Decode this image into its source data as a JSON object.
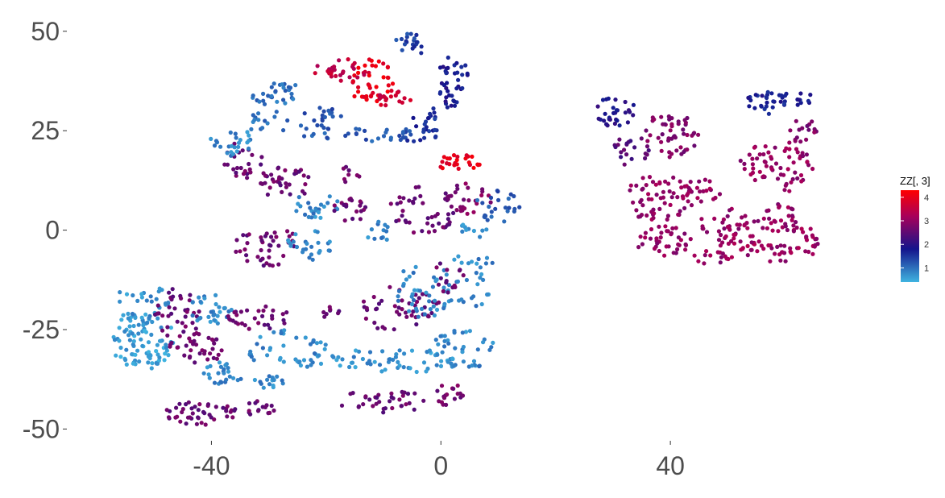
{
  "chart_data": {
    "type": "scatter",
    "title": "",
    "xlabel": "",
    "ylabel": "",
    "xlim": [
      -60,
      72
    ],
    "ylim": [
      -56,
      53
    ],
    "x_ticks": [
      {
        "value": -40,
        "label": "-40"
      },
      {
        "value": 0,
        "label": "0"
      },
      {
        "value": 40,
        "label": "40"
      }
    ],
    "y_ticks": [
      {
        "value": 50,
        "label": "50"
      },
      {
        "value": 25,
        "label": "25"
      },
      {
        "value": 0,
        "label": "0"
      },
      {
        "value": -25,
        "label": "-25"
      },
      {
        "value": -50,
        "label": "-50"
      }
    ],
    "grid": false,
    "legend": {
      "title": "ZZ[, 3]",
      "type": "colorbar",
      "placement": "right",
      "min": 0.4,
      "max": 4.3,
      "ticks": [
        {
          "value": 4,
          "label": "4"
        },
        {
          "value": 3,
          "label": "3"
        },
        {
          "value": 2,
          "label": "2"
        },
        {
          "value": 1,
          "label": "1"
        }
      ],
      "colors": [
        {
          "value": 0.4,
          "color": "#3fb4e0"
        },
        {
          "value": 1.8,
          "color": "#14148c"
        },
        {
          "value": 3.2,
          "color": "#a8005a"
        },
        {
          "value": 4.3,
          "color": "#ff0000"
        }
      ]
    },
    "clusters": [
      {
        "cx": -52,
        "cy": -28,
        "rx": 6,
        "ry": 7,
        "z": 0.6,
        "n": 90
      },
      {
        "cx": -52,
        "cy": -18,
        "rx": 5,
        "ry": 5,
        "z": 0.7,
        "n": 30
      },
      {
        "cx": -46,
        "cy": -22,
        "rx": 4,
        "ry": 8,
        "z": 2.6,
        "n": 40
      },
      {
        "cx": -40,
        "cy": -20,
        "rx": 4,
        "ry": 4,
        "z": 0.8,
        "n": 30
      },
      {
        "cx": -42,
        "cy": -30,
        "rx": 4,
        "ry": 4,
        "z": 2.6,
        "n": 30
      },
      {
        "cx": -38,
        "cy": -36,
        "rx": 4,
        "ry": 3,
        "z": 0.8,
        "n": 25
      },
      {
        "cx": -42,
        "cy": -46,
        "rx": 7,
        "ry": 3,
        "z": 2.6,
        "n": 45
      },
      {
        "cx": -32,
        "cy": -45,
        "rx": 3,
        "ry": 2,
        "z": 2.6,
        "n": 15
      },
      {
        "cx": -32,
        "cy": -22,
        "rx": 6,
        "ry": 3,
        "z": 2.6,
        "n": 30
      },
      {
        "cx": -26,
        "cy": -30,
        "rx": 8,
        "ry": 5,
        "z": 0.8,
        "n": 45
      },
      {
        "cx": -30,
        "cy": -38,
        "rx": 3,
        "ry": 2,
        "z": 0.8,
        "n": 15
      },
      {
        "cx": -10,
        "cy": -33,
        "rx": 14,
        "ry": 3,
        "z": 0.7,
        "n": 55
      },
      {
        "cx": 4,
        "cy": -30,
        "rx": 6,
        "ry": 5,
        "z": 0.8,
        "n": 40
      },
      {
        "cx": -10,
        "cy": -43,
        "rx": 8,
        "ry": 3,
        "z": 2.6,
        "n": 35
      },
      {
        "cx": 1,
        "cy": -41,
        "rx": 3,
        "ry": 3,
        "z": 2.7,
        "n": 18
      },
      {
        "cx": -7,
        "cy": -20,
        "rx": 7,
        "ry": 6,
        "z": 2.6,
        "n": 45
      },
      {
        "cx": -19,
        "cy": -21,
        "rx": 2,
        "ry": 2,
        "z": 2.6,
        "n": 8
      },
      {
        "cx": -3,
        "cy": -15,
        "rx": 5,
        "ry": 7,
        "z": 0.8,
        "n": 40
      },
      {
        "cx": 5,
        "cy": -12,
        "rx": 5,
        "ry": 8,
        "z": 0.8,
        "n": 35
      },
      {
        "cx": 1,
        "cy": -12,
        "rx": 3,
        "ry": 4,
        "z": 2.6,
        "n": 15
      },
      {
        "cx": -30,
        "cy": -4,
        "rx": 6,
        "ry": 5,
        "z": 2.6,
        "n": 40
      },
      {
        "cx": -23,
        "cy": -4,
        "rx": 4,
        "ry": 4,
        "z": 0.8,
        "n": 25
      },
      {
        "cx": -22,
        "cy": 6,
        "rx": 5,
        "ry": 3,
        "z": 0.8,
        "n": 25
      },
      {
        "cx": -16,
        "cy": 5,
        "rx": 3,
        "ry": 3,
        "z": 2.6,
        "n": 20
      },
      {
        "cx": -11,
        "cy": 0,
        "rx": 3,
        "ry": 3,
        "z": 0.8,
        "n": 12
      },
      {
        "cx": -16,
        "cy": 14,
        "rx": 2,
        "ry": 2,
        "z": 2.6,
        "n": 8
      },
      {
        "cx": -3,
        "cy": 5,
        "rx": 6,
        "ry": 6,
        "z": 2.6,
        "n": 45
      },
      {
        "cx": 5,
        "cy": 8,
        "rx": 4,
        "ry": 4,
        "z": 2.8,
        "n": 25
      },
      {
        "cx": 3,
        "cy": 17,
        "rx": 4,
        "ry": 2,
        "z": 4.0,
        "n": 25
      },
      {
        "cx": 10,
        "cy": 6,
        "rx": 4,
        "ry": 4,
        "z": 1.2,
        "n": 25
      },
      {
        "cx": 6,
        "cy": 0,
        "rx": 3,
        "ry": 2,
        "z": 0.8,
        "n": 10
      },
      {
        "cx": -27,
        "cy": 12,
        "rx": 5,
        "ry": 4,
        "z": 2.6,
        "n": 35
      },
      {
        "cx": -34,
        "cy": 18,
        "rx": 4,
        "ry": 5,
        "z": 2.6,
        "n": 25
      },
      {
        "cx": -37,
        "cy": 22,
        "rx": 4,
        "ry": 5,
        "z": 0.8,
        "n": 25
      },
      {
        "cx": -28,
        "cy": 34,
        "rx": 5,
        "ry": 3,
        "z": 1.0,
        "n": 30
      },
      {
        "cx": -30,
        "cy": 27,
        "rx": 4,
        "ry": 3,
        "z": 1.0,
        "n": 15
      },
      {
        "cx": -22,
        "cy": 25,
        "rx": 3,
        "ry": 3,
        "z": 1.2,
        "n": 15
      },
      {
        "cx": -11,
        "cy": 24,
        "rx": 7,
        "ry": 2,
        "z": 1.2,
        "n": 25
      },
      {
        "cx": -20,
        "cy": 29,
        "rx": 4,
        "ry": 2,
        "z": 1.2,
        "n": 12
      },
      {
        "cx": -4,
        "cy": 24,
        "rx": 4,
        "ry": 2,
        "z": 1.5,
        "n": 12
      },
      {
        "cx": -17,
        "cy": 40,
        "rx": 5,
        "ry": 3,
        "z": 3.5,
        "n": 30
      },
      {
        "cx": -12,
        "cy": 37,
        "rx": 4,
        "ry": 6,
        "z": 4.0,
        "n": 40
      },
      {
        "cx": -8,
        "cy": 33,
        "rx": 3,
        "ry": 2,
        "z": 3.6,
        "n": 15
      },
      {
        "cx": -5,
        "cy": 47,
        "rx": 3,
        "ry": 3,
        "z": 1.4,
        "n": 20
      },
      {
        "cx": 2,
        "cy": 37,
        "rx": 3,
        "ry": 7,
        "z": 1.8,
        "n": 40
      },
      {
        "cx": -2,
        "cy": 28,
        "rx": 3,
        "ry": 3,
        "z": 1.6,
        "n": 15
      },
      {
        "cx": 30,
        "cy": 30,
        "rx": 4,
        "ry": 4,
        "z": 1.9,
        "n": 30
      },
      {
        "cx": 33,
        "cy": 20,
        "rx": 4,
        "ry": 4,
        "z": 2.4,
        "n": 20
      },
      {
        "cx": 40,
        "cy": 24,
        "rx": 5,
        "ry": 6,
        "z": 2.8,
        "n": 50
      },
      {
        "cx": 38,
        "cy": 8,
        "rx": 6,
        "ry": 6,
        "z": 3.0,
        "n": 60
      },
      {
        "cx": 39,
        "cy": -3,
        "rx": 5,
        "ry": 4,
        "z": 3.0,
        "n": 40
      },
      {
        "cx": 46,
        "cy": 10,
        "rx": 4,
        "ry": 3,
        "z": 3.0,
        "n": 20
      },
      {
        "cx": 50,
        "cy": 2,
        "rx": 5,
        "ry": 4,
        "z": 3.0,
        "n": 30
      },
      {
        "cx": 52,
        "cy": -4,
        "rx": 4,
        "ry": 4,
        "z": 3.1,
        "n": 30
      },
      {
        "cx": 47,
        "cy": -7,
        "rx": 3,
        "ry": 2,
        "z": 3.0,
        "n": 12
      },
      {
        "cx": 56,
        "cy": 32,
        "rx": 4,
        "ry": 3,
        "z": 1.7,
        "n": 25
      },
      {
        "cx": 62,
        "cy": 33,
        "rx": 3,
        "ry": 2,
        "z": 1.7,
        "n": 15
      },
      {
        "cx": 55,
        "cy": 17,
        "rx": 3,
        "ry": 5,
        "z": 3.0,
        "n": 25
      },
      {
        "cx": 61,
        "cy": 16,
        "rx": 4,
        "ry": 7,
        "z": 3.0,
        "n": 40
      },
      {
        "cx": 63,
        "cy": 25,
        "rx": 3,
        "ry": 3,
        "z": 2.8,
        "n": 15
      },
      {
        "cx": 59,
        "cy": 3,
        "rx": 4,
        "ry": 4,
        "z": 3.0,
        "n": 30
      },
      {
        "cx": 63,
        "cy": -3,
        "rx": 3,
        "ry": 4,
        "z": 3.1,
        "n": 25
      },
      {
        "cx": 58,
        "cy": -6,
        "rx": 3,
        "ry": 3,
        "z": 3.0,
        "n": 15
      }
    ]
  }
}
